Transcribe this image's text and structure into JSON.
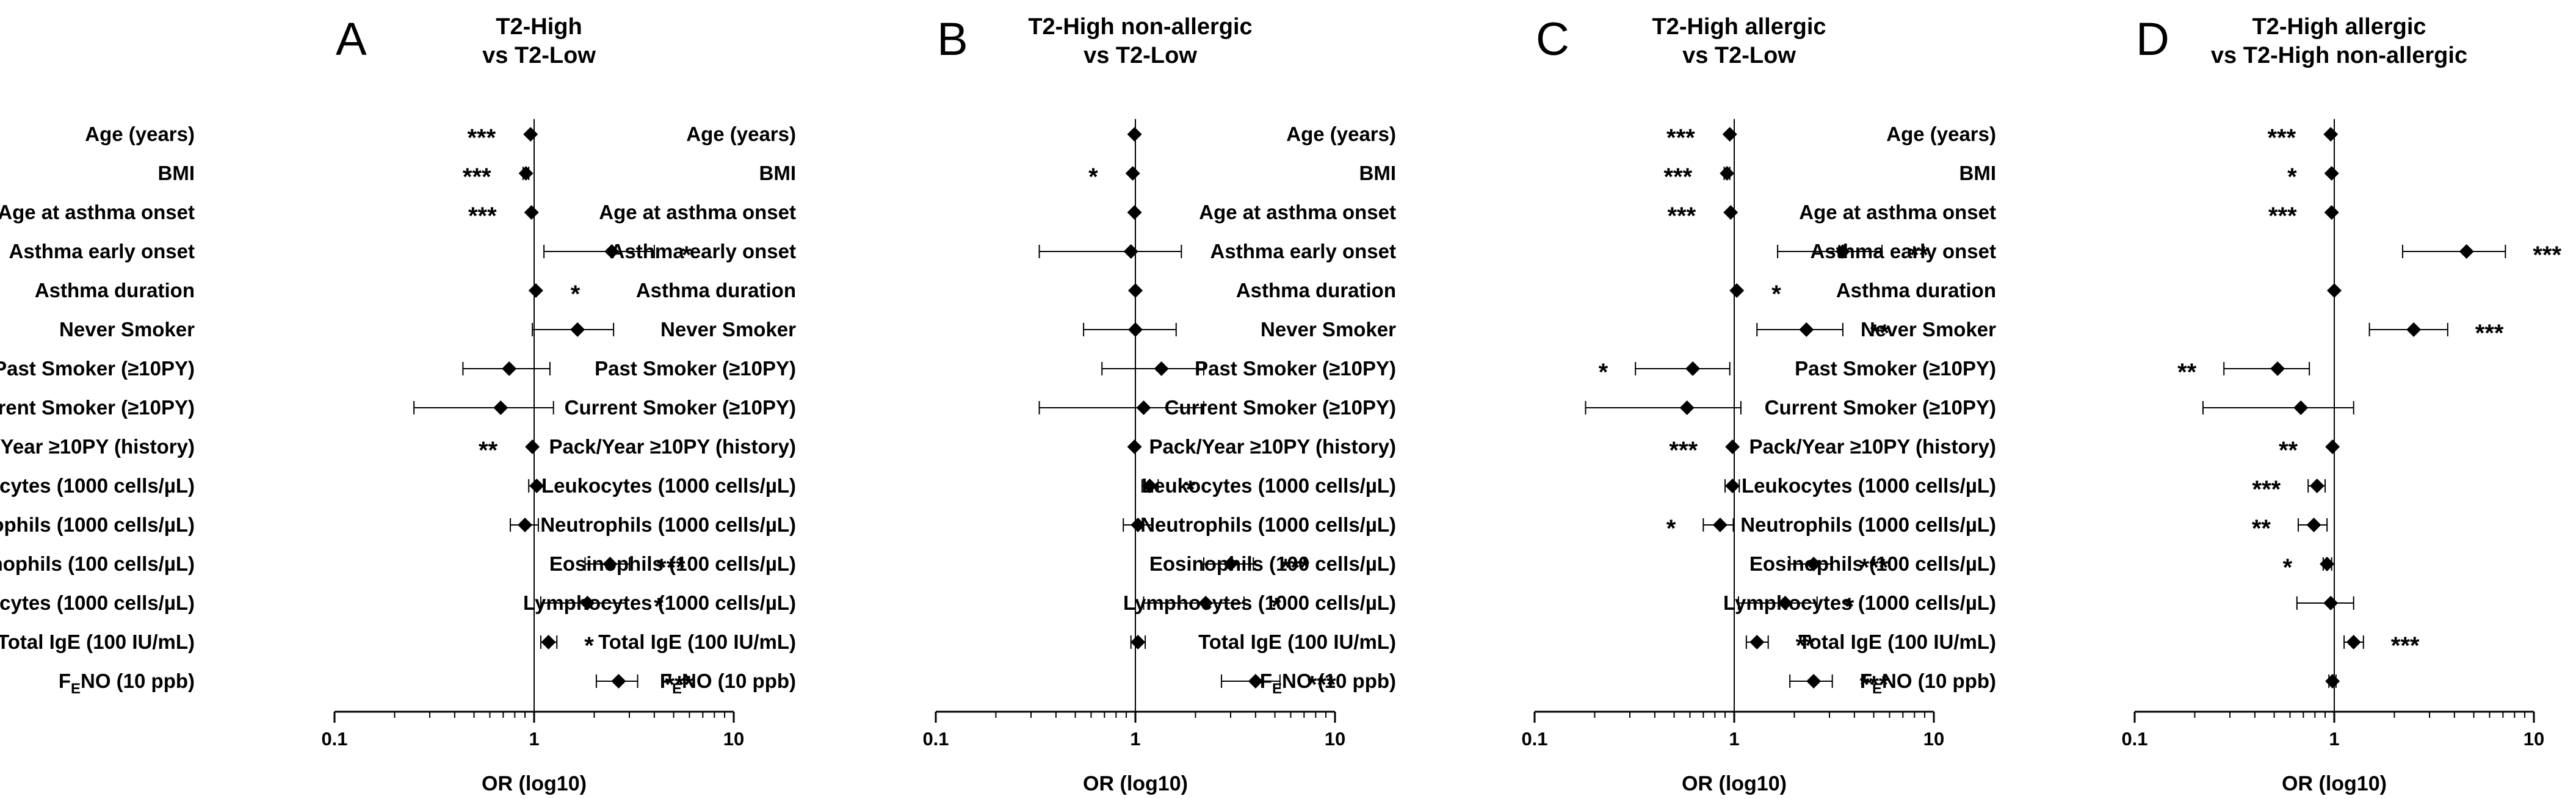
{
  "chart_data": {
    "type": "forest",
    "x_scale": "log10",
    "xlim": [
      0.1,
      10
    ],
    "x_ticks": [
      {
        "value": 0.1,
        "label": "0.1"
      },
      {
        "value": 1,
        "label": "1"
      },
      {
        "value": 10,
        "label": "10"
      }
    ],
    "xlabel": "OR (log10)",
    "reference_line": 1,
    "rows": [
      {
        "label": "Age (years)"
      },
      {
        "label": "BMI"
      },
      {
        "label": "Age at asthma onset"
      },
      {
        "label": "Asthma early onset"
      },
      {
        "label": "Asthma duration"
      },
      {
        "label": "Never Smoker"
      },
      {
        "label": "Past Smoker (≥10PY)"
      },
      {
        "label": "Current Smoker (≥10PY)"
      },
      {
        "label": "Pack/Year ≥10PY (history)"
      },
      {
        "label": "Leukocytes (1000 cells/µL)"
      },
      {
        "label": "Neutrophils (1000 cells/µL)"
      },
      {
        "label": "Eosinophils (100 cells/µL)"
      },
      {
        "label": "Lymphocytes (1000 cells/µL)"
      },
      {
        "label": "Total IgE (100 IU/mL)"
      },
      {
        "label": "F",
        "subscript": "E",
        "suffix": "NO (10 ppb)"
      }
    ],
    "panels": [
      {
        "letter": "A",
        "title": [
          "T2-High",
          "vs T2-Low"
        ],
        "data": [
          {
            "or": 0.96,
            "lo": 0.94,
            "hi": 0.98,
            "sig": "***",
            "sig_side": "left"
          },
          {
            "or": 0.91,
            "lo": 0.88,
            "hi": 0.94,
            "sig": "***",
            "sig_side": "left"
          },
          {
            "or": 0.97,
            "lo": 0.95,
            "hi": 0.99,
            "sig": "***",
            "sig_side": "left"
          },
          {
            "or": 2.45,
            "lo": 1.12,
            "hi": 4.0,
            "sig": "*",
            "sig_side": "right"
          },
          {
            "or": 1.02,
            "lo": 1.0,
            "hi": 1.04,
            "sig": "*",
            "sig_side": "right"
          },
          {
            "or": 1.65,
            "lo": 0.98,
            "hi": 2.5,
            "sig": "",
            "sig_side": "right"
          },
          {
            "or": 0.75,
            "lo": 0.44,
            "hi": 1.2,
            "sig": "",
            "sig_side": "right"
          },
          {
            "or": 0.68,
            "lo": 0.25,
            "hi": 1.25,
            "sig": "",
            "sig_side": "right"
          },
          {
            "or": 0.98,
            "lo": 0.96,
            "hi": 1.0,
            "sig": "**",
            "sig_side": "left"
          },
          {
            "or": 1.03,
            "lo": 0.94,
            "hi": 1.12,
            "sig": "",
            "sig_side": "right"
          },
          {
            "or": 0.9,
            "lo": 0.76,
            "hi": 1.05,
            "sig": "",
            "sig_side": "right"
          },
          {
            "or": 2.4,
            "lo": 1.8,
            "hi": 3.0,
            "sig": "***",
            "sig_side": "right"
          },
          {
            "or": 1.85,
            "lo": 1.08,
            "hi": 2.9,
            "sig": "*",
            "sig_side": "right"
          },
          {
            "or": 1.18,
            "lo": 1.08,
            "hi": 1.3,
            "sig": "*",
            "sig_side": "right"
          },
          {
            "or": 2.65,
            "lo": 2.05,
            "hi": 3.3,
            "sig": "***",
            "sig_side": "right"
          }
        ]
      },
      {
        "letter": "B",
        "title": [
          "T2-High non-allergic",
          "vs T2-Low"
        ],
        "data": [
          {
            "or": 0.99,
            "lo": 0.98,
            "hi": 1.0,
            "sig": "",
            "sig_side": "right"
          },
          {
            "or": 0.97,
            "lo": 0.95,
            "hi": 0.99,
            "sig": "*",
            "sig_side": "left"
          },
          {
            "or": 0.99,
            "lo": 0.98,
            "hi": 1.0,
            "sig": "",
            "sig_side": "right"
          },
          {
            "or": 0.95,
            "lo": 0.33,
            "hi": 1.7,
            "sig": "",
            "sig_side": "right"
          },
          {
            "or": 1.0,
            "lo": 0.99,
            "hi": 1.01,
            "sig": "",
            "sig_side": "right"
          },
          {
            "or": 1.0,
            "lo": 0.55,
            "hi": 1.6,
            "sig": "",
            "sig_side": "right"
          },
          {
            "or": 1.35,
            "lo": 0.68,
            "hi": 2.2,
            "sig": "",
            "sig_side": "right"
          },
          {
            "or": 1.1,
            "lo": 0.33,
            "hi": 2.2,
            "sig": "",
            "sig_side": "right"
          },
          {
            "or": 0.99,
            "lo": 0.98,
            "hi": 1.0,
            "sig": "",
            "sig_side": "right"
          },
          {
            "or": 1.18,
            "lo": 1.08,
            "hi": 1.3,
            "sig": "*",
            "sig_side": "right"
          },
          {
            "or": 1.03,
            "lo": 0.87,
            "hi": 1.22,
            "sig": "",
            "sig_side": "right"
          },
          {
            "or": 3.0,
            "lo": 2.2,
            "hi": 3.9,
            "sig": "***",
            "sig_side": "right"
          },
          {
            "or": 2.25,
            "lo": 1.1,
            "hi": 3.5,
            "sig": "*",
            "sig_side": "right"
          },
          {
            "or": 1.03,
            "lo": 0.95,
            "hi": 1.12,
            "sig": "",
            "sig_side": "right"
          },
          {
            "or": 4.0,
            "lo": 2.7,
            "hi": 5.3,
            "sig": "***",
            "sig_side": "right"
          }
        ]
      },
      {
        "letter": "C",
        "title": [
          "T2-High allergic",
          "vs T2-Low"
        ],
        "data": [
          {
            "or": 0.95,
            "lo": 0.93,
            "hi": 0.97,
            "sig": "***",
            "sig_side": "left"
          },
          {
            "or": 0.92,
            "lo": 0.89,
            "hi": 0.95,
            "sig": "***",
            "sig_side": "left"
          },
          {
            "or": 0.96,
            "lo": 0.94,
            "hi": 0.98,
            "sig": "***",
            "sig_side": "left"
          },
          {
            "or": 3.5,
            "lo": 1.65,
            "hi": 5.5,
            "sig": "**",
            "sig_side": "right"
          },
          {
            "or": 1.03,
            "lo": 1.01,
            "hi": 1.05,
            "sig": "*",
            "sig_side": "right"
          },
          {
            "or": 2.3,
            "lo": 1.3,
            "hi": 3.5,
            "sig": "**",
            "sig_side": "right"
          },
          {
            "or": 0.62,
            "lo": 0.32,
            "hi": 0.95,
            "sig": "*",
            "sig_side": "left"
          },
          {
            "or": 0.58,
            "lo": 0.18,
            "hi": 1.08,
            "sig": "",
            "sig_side": "right"
          },
          {
            "or": 0.98,
            "lo": 0.96,
            "hi": 1.0,
            "sig": "***",
            "sig_side": "left"
          },
          {
            "or": 0.98,
            "lo": 0.9,
            "hi": 1.06,
            "sig": "",
            "sig_side": "right"
          },
          {
            "or": 0.85,
            "lo": 0.7,
            "hi": 0.99,
            "sig": "*",
            "sig_side": "left"
          },
          {
            "or": 2.5,
            "lo": 1.9,
            "hi": 3.1,
            "sig": "***",
            "sig_side": "right"
          },
          {
            "or": 1.8,
            "lo": 1.05,
            "hi": 2.6,
            "sig": "*",
            "sig_side": "right"
          },
          {
            "or": 1.3,
            "lo": 1.15,
            "hi": 1.48,
            "sig": "**",
            "sig_side": "right"
          },
          {
            "or": 2.5,
            "lo": 1.9,
            "hi": 3.1,
            "sig": "***",
            "sig_side": "right"
          }
        ]
      },
      {
        "letter": "D",
        "title": [
          "T2-High allergic",
          "vs T2-High non-allergic"
        ],
        "data": [
          {
            "or": 0.96,
            "lo": 0.94,
            "hi": 0.98,
            "sig": "***",
            "sig_side": "left"
          },
          {
            "or": 0.97,
            "lo": 0.95,
            "hi": 0.99,
            "sig": "*",
            "sig_side": "left"
          },
          {
            "or": 0.97,
            "lo": 0.95,
            "hi": 0.99,
            "sig": "***",
            "sig_side": "left"
          },
          {
            "or": 4.6,
            "lo": 2.2,
            "hi": 7.2,
            "sig": "***",
            "sig_side": "right"
          },
          {
            "or": 1.0,
            "lo": 0.99,
            "hi": 1.01,
            "sig": "",
            "sig_side": "right"
          },
          {
            "or": 2.5,
            "lo": 1.5,
            "hi": 3.7,
            "sig": "***",
            "sig_side": "right"
          },
          {
            "or": 0.52,
            "lo": 0.28,
            "hi": 0.75,
            "sig": "**",
            "sig_side": "left"
          },
          {
            "or": 0.68,
            "lo": 0.22,
            "hi": 1.25,
            "sig": "",
            "sig_side": "right"
          },
          {
            "or": 0.98,
            "lo": 0.96,
            "hi": 1.0,
            "sig": "**",
            "sig_side": "left"
          },
          {
            "or": 0.82,
            "lo": 0.74,
            "hi": 0.9,
            "sig": "***",
            "sig_side": "left"
          },
          {
            "or": 0.79,
            "lo": 0.66,
            "hi": 0.92,
            "sig": "**",
            "sig_side": "left"
          },
          {
            "or": 0.92,
            "lo": 0.88,
            "hi": 0.97,
            "sig": "*",
            "sig_side": "left"
          },
          {
            "or": 0.96,
            "lo": 0.65,
            "hi": 1.25,
            "sig": "",
            "sig_side": "right"
          },
          {
            "or": 1.25,
            "lo": 1.12,
            "hi": 1.4,
            "sig": "***",
            "sig_side": "right"
          },
          {
            "or": 0.98,
            "lo": 0.94,
            "hi": 1.02,
            "sig": "",
            "sig_side": "right"
          }
        ]
      }
    ]
  }
}
